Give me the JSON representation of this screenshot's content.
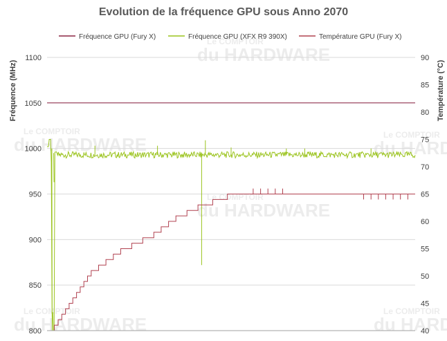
{
  "chart_data": {
    "type": "line",
    "title": "Evolution de la fréquence GPU sous Anno 2070",
    "ylabel": "Fréquence (MHz)",
    "y2label": "Température (°C)",
    "ylim": [
      800,
      1100
    ],
    "y2lim": [
      40,
      90
    ],
    "yticks": [
      "800",
      "850",
      "900",
      "950",
      "1000",
      "1050",
      "1100"
    ],
    "y2ticks": [
      "40",
      "45",
      "50",
      "55",
      "60",
      "65",
      "70",
      "75",
      "80",
      "85",
      "90"
    ],
    "legend_position": "top",
    "grid": "horizontal",
    "watermark": [
      "Le COMPTOIR",
      "du HARDWARE"
    ],
    "series": [
      {
        "name": "Fréquence GPU (Fury X)",
        "axis": "left",
        "color": "#8c2342",
        "points": [
          [
            0,
            1050
          ],
          [
            1,
            1050
          ]
        ]
      },
      {
        "name": "Fréquence GPU (XFX R9 390X)",
        "axis": "left",
        "color": "#9ac31c",
        "base": 989,
        "points": [
          [
            0,
            1002
          ],
          [
            0.005,
            1010
          ],
          [
            0.01,
            985
          ],
          [
            0.013,
            820
          ],
          [
            0.016,
            800
          ],
          [
            0.02,
            996
          ],
          [
            0.024,
            1000
          ],
          [
            0.03,
            997
          ],
          [
            0.05,
            990
          ],
          [
            0.1,
            993
          ],
          [
            0.15,
            989
          ],
          [
            0.2,
            992
          ],
          [
            0.25,
            990
          ],
          [
            0.3,
            991
          ],
          [
            0.35,
            989
          ],
          [
            0.4,
            992
          ],
          [
            0.5,
            994
          ],
          [
            0.6,
            993
          ],
          [
            0.7,
            992
          ],
          [
            0.8,
            994
          ],
          [
            0.9,
            990
          ],
          [
            0.95,
            988
          ],
          [
            1,
            993
          ]
        ],
        "spikes": [
          [
            0.13,
            1003
          ],
          [
            0.3,
            1003
          ],
          [
            0.42,
            872
          ],
          [
            0.43,
            1009
          ],
          [
            0.5,
            1001
          ],
          [
            0.65,
            1000
          ],
          [
            0.7,
            1000
          ],
          [
            0.83,
            993
          ],
          [
            0.88,
            1000
          ]
        ]
      },
      {
        "name": "Température GPU (Fury X)",
        "axis": "right",
        "color": "#b0404f",
        "points": [
          [
            0,
            40
          ],
          [
            0.02,
            41
          ],
          [
            0.03,
            42
          ],
          [
            0.04,
            43
          ],
          [
            0.05,
            44
          ],
          [
            0.06,
            45
          ],
          [
            0.07,
            46
          ],
          [
            0.08,
            47
          ],
          [
            0.09,
            48
          ],
          [
            0.1,
            49
          ],
          [
            0.11,
            50
          ],
          [
            0.12,
            51
          ],
          [
            0.14,
            52
          ],
          [
            0.16,
            53
          ],
          [
            0.18,
            54
          ],
          [
            0.2,
            55
          ],
          [
            0.23,
            56
          ],
          [
            0.26,
            57
          ],
          [
            0.29,
            58
          ],
          [
            0.31,
            59
          ],
          [
            0.33,
            60
          ],
          [
            0.35,
            61
          ],
          [
            0.38,
            62
          ],
          [
            0.41,
            63
          ],
          [
            0.45,
            64
          ],
          [
            0.49,
            65
          ],
          [
            1,
            65
          ]
        ],
        "spikes": [
          [
            0.56,
            66
          ],
          [
            0.58,
            66
          ],
          [
            0.6,
            66
          ],
          [
            0.62,
            66
          ],
          [
            0.64,
            66
          ],
          [
            0.86,
            64
          ],
          [
            0.88,
            64
          ],
          [
            0.9,
            64
          ],
          [
            0.92,
            64
          ],
          [
            0.94,
            64
          ],
          [
            0.96,
            64
          ],
          [
            0.98,
            64
          ]
        ]
      }
    ]
  }
}
